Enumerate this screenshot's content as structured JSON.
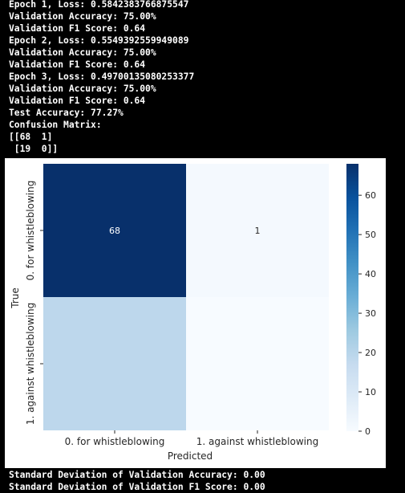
{
  "terminal": {
    "lines_top": [
      "Epoch 1, Loss: 0.5842383766875547",
      "Validation Accuracy: 75.00%",
      "Validation F1 Score: 0.64",
      "Epoch 2, Loss: 0.5549392559949089",
      "Validation Accuracy: 75.00%",
      "Validation F1 Score: 0.64",
      "Epoch 3, Loss: 0.49700135080253377",
      "Validation Accuracy: 75.00%",
      "Validation F1 Score: 0.64",
      "Test Accuracy: 77.27%",
      "Confusion Matrix:",
      "[[68  1]",
      " [19  0]]"
    ],
    "lines_bottom": [
      "Standard Deviation of Validation Accuracy: 0.00",
      "Standard Deviation of Validation F1 Score: 0.00"
    ]
  },
  "chart_data": {
    "type": "heatmap",
    "xlabel": "Predicted",
    "ylabel": "True",
    "x_categories": [
      "0. for whistleblowing",
      "1. against whistleblowing"
    ],
    "y_categories": [
      "0. for whistleblowing",
      "1. against whistleblowing"
    ],
    "matrix": [
      [
        68,
        1
      ],
      [
        19,
        0
      ]
    ],
    "cell_labels": [
      [
        "68",
        "1"
      ],
      [
        "",
        ""
      ]
    ],
    "colormap": "Blues",
    "colorbar": {
      "range": [
        0,
        68
      ],
      "ticks": [
        "0",
        "10",
        "20",
        "30",
        "40",
        "50",
        "60"
      ]
    },
    "colors": {
      "low": "#f7fbff",
      "high": "#08306b"
    }
  }
}
